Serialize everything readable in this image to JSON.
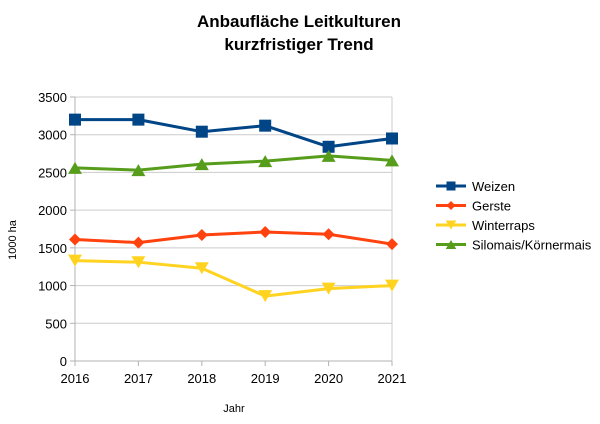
{
  "chart_data": {
    "type": "line",
    "title": "Anbaufläche Leitkulturen",
    "subtitle": "kurzfristiger Trend",
    "xlabel": "Jahr",
    "ylabel": "1000 ha",
    "x": [
      "2016",
      "2017",
      "2018",
      "2019",
      "2020",
      "2021"
    ],
    "ylim": [
      0,
      3500
    ],
    "yticks": [
      0,
      500,
      1000,
      1500,
      2000,
      2500,
      3000,
      3500
    ],
    "grid": true,
    "legend_position": "right",
    "series": [
      {
        "name": "Weizen",
        "color": "#004586",
        "marker": "square",
        "values": [
          3200,
          3200,
          3040,
          3120,
          2840,
          2950
        ]
      },
      {
        "name": "Gerste",
        "color": "#FF420E",
        "marker": "diamond",
        "values": [
          1610,
          1570,
          1670,
          1710,
          1680,
          1550
        ]
      },
      {
        "name": "Winterraps",
        "color": "#FFD320",
        "marker": "triangle-down",
        "values": [
          1330,
          1310,
          1230,
          860,
          960,
          1000
        ]
      },
      {
        "name": "Silomais/Körnermais",
        "color": "#579D1C",
        "marker": "triangle-up",
        "values": [
          2560,
          2530,
          2610,
          2650,
          2720,
          2660
        ]
      }
    ]
  }
}
